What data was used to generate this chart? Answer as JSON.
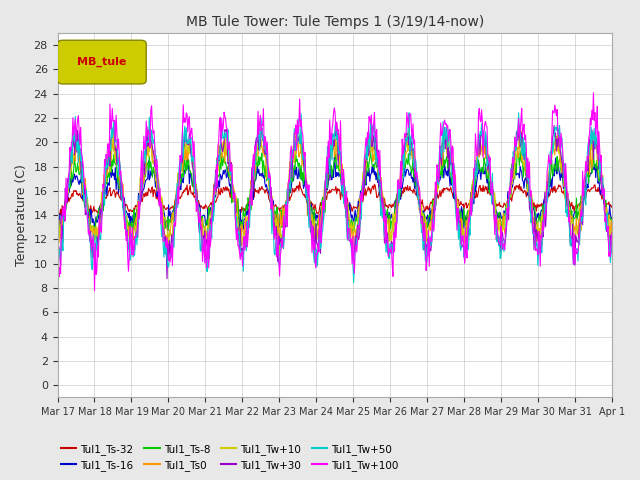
{
  "title": "MB Tule Tower: Tule Temps 1 (3/19/14-now)",
  "ylabel": "Temperature (C)",
  "ylim": [
    -1,
    29
  ],
  "yticks": [
    0,
    2,
    4,
    6,
    8,
    10,
    12,
    14,
    16,
    18,
    20,
    22,
    24,
    26,
    28
  ],
  "x_labels": [
    "Mar 17",
    "Mar 18",
    "Mar 19",
    "Mar 20",
    "Mar 21",
    "Mar 22",
    "Mar 23",
    "Mar 24",
    "Mar 25",
    "Mar 26",
    "Mar 27",
    "Mar 28",
    "Mar 29",
    "Mar 30",
    "Mar 31",
    "Apr 1"
  ],
  "x_tick_positions": [
    0,
    1,
    2,
    3,
    4,
    5,
    6,
    7,
    8,
    9,
    10,
    11,
    12,
    13,
    14,
    15
  ],
  "legend_label": "MB_tule",
  "series": [
    {
      "name": "Tul1_Ts-32",
      "color": "#cc0000"
    },
    {
      "name": "Tul1_Ts-16",
      "color": "#0000cc"
    },
    {
      "name": "Tul1_Ts-8",
      "color": "#00cc00"
    },
    {
      "name": "Tul1_Ts0",
      "color": "#ff9900"
    },
    {
      "name": "Tul1_Tw+10",
      "color": "#cccc00"
    },
    {
      "name": "Tul1_Tw+30",
      "color": "#9900cc"
    },
    {
      "name": "Tul1_Tw+50",
      "color": "#00cccc"
    },
    {
      "name": "Tul1_Tw+100",
      "color": "#ff00ff"
    }
  ],
  "background_color": "#e8e8e8",
  "plot_bg_color": "#ffffff",
  "grid_color": "#cccccc"
}
